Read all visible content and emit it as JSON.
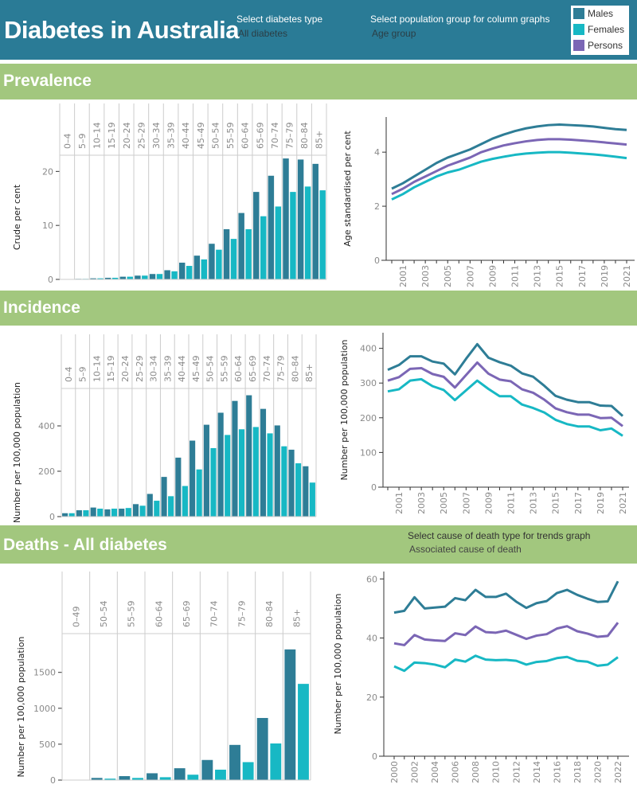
{
  "header": {
    "title": "Diabetes in Australia",
    "filter_type": {
      "label": "Select diabetes type",
      "value": "All diabetes"
    },
    "filter_group": {
      "label": "Select population group for column graphs",
      "value": "Age group"
    },
    "legend": [
      {
        "label": "Males",
        "color": "#2e7d96"
      },
      {
        "label": "Females",
        "color": "#17b8c4"
      },
      {
        "label": "Persons",
        "color": "#7b66b5"
      }
    ]
  },
  "sections": {
    "prevalence": "Prevalence",
    "incidence": "Incidence",
    "deaths": "Deaths - All diabetes",
    "death_filter": {
      "label": "Select cause of death type for trends graph",
      "value": "Associated cause of death"
    }
  },
  "chart_data": [
    {
      "id": "prev-bars",
      "type": "bar",
      "ylabel": "Crude per cent",
      "ylim": [
        0,
        23
      ],
      "yticks": [
        0,
        10,
        20
      ],
      "categories": [
        "0–4",
        "5–9",
        "10–14",
        "15–19",
        "20–24",
        "25–29",
        "30–34",
        "35–39",
        "40–44",
        "45–49",
        "50–54",
        "55–59",
        "60–64",
        "65–69",
        "70–74",
        "75–79",
        "80–84",
        "85+"
      ],
      "series": [
        {
          "name": "Males",
          "values": [
            0,
            0.1,
            0.2,
            0.3,
            0.5,
            0.7,
            1.0,
            1.7,
            3.1,
            4.4,
            6.6,
            9.3,
            12.3,
            16.2,
            19.2,
            22.4,
            22.2,
            21.4
          ]
        },
        {
          "name": "Females",
          "values": [
            0,
            0.1,
            0.2,
            0.3,
            0.5,
            0.7,
            1.0,
            1.5,
            2.5,
            3.7,
            5.5,
            7.5,
            9.3,
            11.7,
            13.5,
            16.2,
            17.2,
            16.5
          ]
        }
      ]
    },
    {
      "id": "prev-lines",
      "type": "line",
      "ylabel": "Age standardised per cent",
      "ylim": [
        0,
        5.3
      ],
      "yticks": [
        0,
        2,
        4
      ],
      "x": [
        2000,
        2001,
        2002,
        2003,
        2004,
        2005,
        2006,
        2007,
        2008,
        2009,
        2010,
        2011,
        2012,
        2013,
        2014,
        2015,
        2016,
        2017,
        2018,
        2019,
        2020,
        2021
      ],
      "xticks": [
        2001,
        2003,
        2005,
        2007,
        2009,
        2011,
        2013,
        2015,
        2017,
        2019,
        2021
      ],
      "series": [
        {
          "name": "Males",
          "values": [
            2.65,
            2.85,
            3.1,
            3.35,
            3.6,
            3.8,
            3.95,
            4.1,
            4.3,
            4.5,
            4.65,
            4.78,
            4.88,
            4.95,
            5.0,
            5.02,
            5.0,
            4.98,
            4.95,
            4.9,
            4.85,
            4.82
          ]
        },
        {
          "name": "Persons",
          "values": [
            2.45,
            2.65,
            2.9,
            3.1,
            3.3,
            3.5,
            3.65,
            3.8,
            4.0,
            4.13,
            4.25,
            4.33,
            4.4,
            4.45,
            4.48,
            4.48,
            4.46,
            4.43,
            4.4,
            4.36,
            4.32,
            4.28
          ]
        },
        {
          "name": "Females",
          "values": [
            2.25,
            2.45,
            2.7,
            2.9,
            3.1,
            3.25,
            3.35,
            3.5,
            3.65,
            3.75,
            3.83,
            3.9,
            3.95,
            3.98,
            4.0,
            4.0,
            3.98,
            3.95,
            3.92,
            3.88,
            3.83,
            3.78
          ]
        }
      ]
    },
    {
      "id": "inc-bars",
      "type": "bar",
      "ylabel": "Number per 100,000 population",
      "ylim": [
        0,
        565
      ],
      "yticks": [
        0,
        200,
        400
      ],
      "categories": [
        "0–4",
        "5–9",
        "10–14",
        "15–19",
        "20–24",
        "25–29",
        "30–34",
        "35–39",
        "40–44",
        "45–49",
        "50–54",
        "55–59",
        "60–64",
        "65–69",
        "70–74",
        "75–79",
        "80–84",
        "85+"
      ],
      "series": [
        {
          "name": "Males",
          "values": [
            15,
            28,
            40,
            32,
            35,
            55,
            100,
            175,
            260,
            335,
            405,
            458,
            510,
            535,
            475,
            402,
            295,
            222
          ]
        },
        {
          "name": "Females",
          "values": [
            15,
            28,
            35,
            35,
            38,
            48,
            70,
            90,
            135,
            208,
            302,
            360,
            385,
            395,
            367,
            310,
            235,
            150
          ]
        }
      ]
    },
    {
      "id": "inc-lines",
      "type": "line",
      "ylabel": "Number per 100,000 population",
      "ylim": [
        0,
        445
      ],
      "yticks": [
        0,
        100,
        200,
        300,
        400
      ],
      "x": [
        2000,
        2001,
        2002,
        2003,
        2004,
        2005,
        2006,
        2007,
        2008,
        2009,
        2010,
        2011,
        2012,
        2013,
        2014,
        2015,
        2016,
        2017,
        2018,
        2019,
        2020,
        2021
      ],
      "xticks": [
        2001,
        2003,
        2005,
        2007,
        2009,
        2011,
        2013,
        2015,
        2017,
        2019,
        2021
      ],
      "series": [
        {
          "name": "Males",
          "values": [
            338,
            352,
            377,
            377,
            362,
            356,
            325,
            370,
            412,
            373,
            360,
            350,
            328,
            318,
            292,
            263,
            252,
            245,
            245,
            235,
            234,
            205
          ]
        },
        {
          "name": "Persons",
          "values": [
            307,
            317,
            341,
            343,
            326,
            318,
            287,
            323,
            359,
            327,
            310,
            305,
            282,
            272,
            252,
            227,
            216,
            209,
            209,
            199,
            200,
            176
          ]
        },
        {
          "name": "Females",
          "values": [
            276,
            282,
            307,
            311,
            291,
            280,
            251,
            279,
            307,
            283,
            262,
            262,
            238,
            228,
            215,
            194,
            182,
            175,
            175,
            164,
            169,
            148
          ]
        }
      ]
    },
    {
      "id": "death-bars",
      "type": "bar",
      "ylabel": "Number per 100,000 population",
      "ylim": [
        0,
        2040
      ],
      "yticks": [
        0,
        500,
        1000,
        1500
      ],
      "categories": [
        "0–49",
        "50–54",
        "55–59",
        "60–64",
        "65–69",
        "70–74",
        "75–79",
        "80–84",
        "85+"
      ],
      "series": [
        {
          "name": "Males",
          "values": [
            1,
            30,
            55,
            95,
            165,
            280,
            490,
            865,
            1820
          ]
        },
        {
          "name": "Females",
          "values": [
            1,
            20,
            30,
            40,
            75,
            145,
            250,
            510,
            1340
          ]
        }
      ]
    },
    {
      "id": "death-lines",
      "type": "line",
      "ylabel": "Number per 100,000 population",
      "ylim": [
        0,
        62.5
      ],
      "yticks": [
        0,
        20,
        40,
        60
      ],
      "x": [
        2000,
        2001,
        2002,
        2003,
        2004,
        2005,
        2006,
        2007,
        2008,
        2009,
        2010,
        2011,
        2012,
        2013,
        2014,
        2015,
        2016,
        2017,
        2018,
        2019,
        2020,
        2021,
        2022
      ],
      "xticks": [
        2000,
        2002,
        2004,
        2006,
        2008,
        2010,
        2012,
        2014,
        2016,
        2018,
        2020,
        2022
      ],
      "series": [
        {
          "name": "Males",
          "values": [
            48.6,
            49.2,
            53.8,
            50,
            50.3,
            50.6,
            53.5,
            52.8,
            56.3,
            53.9,
            53.9,
            55,
            52.3,
            50.2,
            51.8,
            52.5,
            55.2,
            56.3,
            54.6,
            53.3,
            52.2,
            52.4,
            59.2
          ]
        },
        {
          "name": "Persons",
          "values": [
            38.2,
            37.6,
            41,
            39.5,
            39.2,
            39,
            41.6,
            41,
            43.9,
            42,
            41.8,
            42.5,
            41.1,
            39.7,
            40.8,
            41.3,
            43.2,
            44,
            42.3,
            41.5,
            40.4,
            40.7,
            45.2
          ]
        },
        {
          "name": "Females",
          "values": [
            30.4,
            28.9,
            31.7,
            31.5,
            31,
            30.1,
            32.7,
            32,
            34,
            32.7,
            32.5,
            32.6,
            32.3,
            31,
            31.9,
            32.2,
            33.2,
            33.6,
            32.3,
            32,
            30.6,
            31,
            33.5
          ]
        }
      ]
    }
  ]
}
